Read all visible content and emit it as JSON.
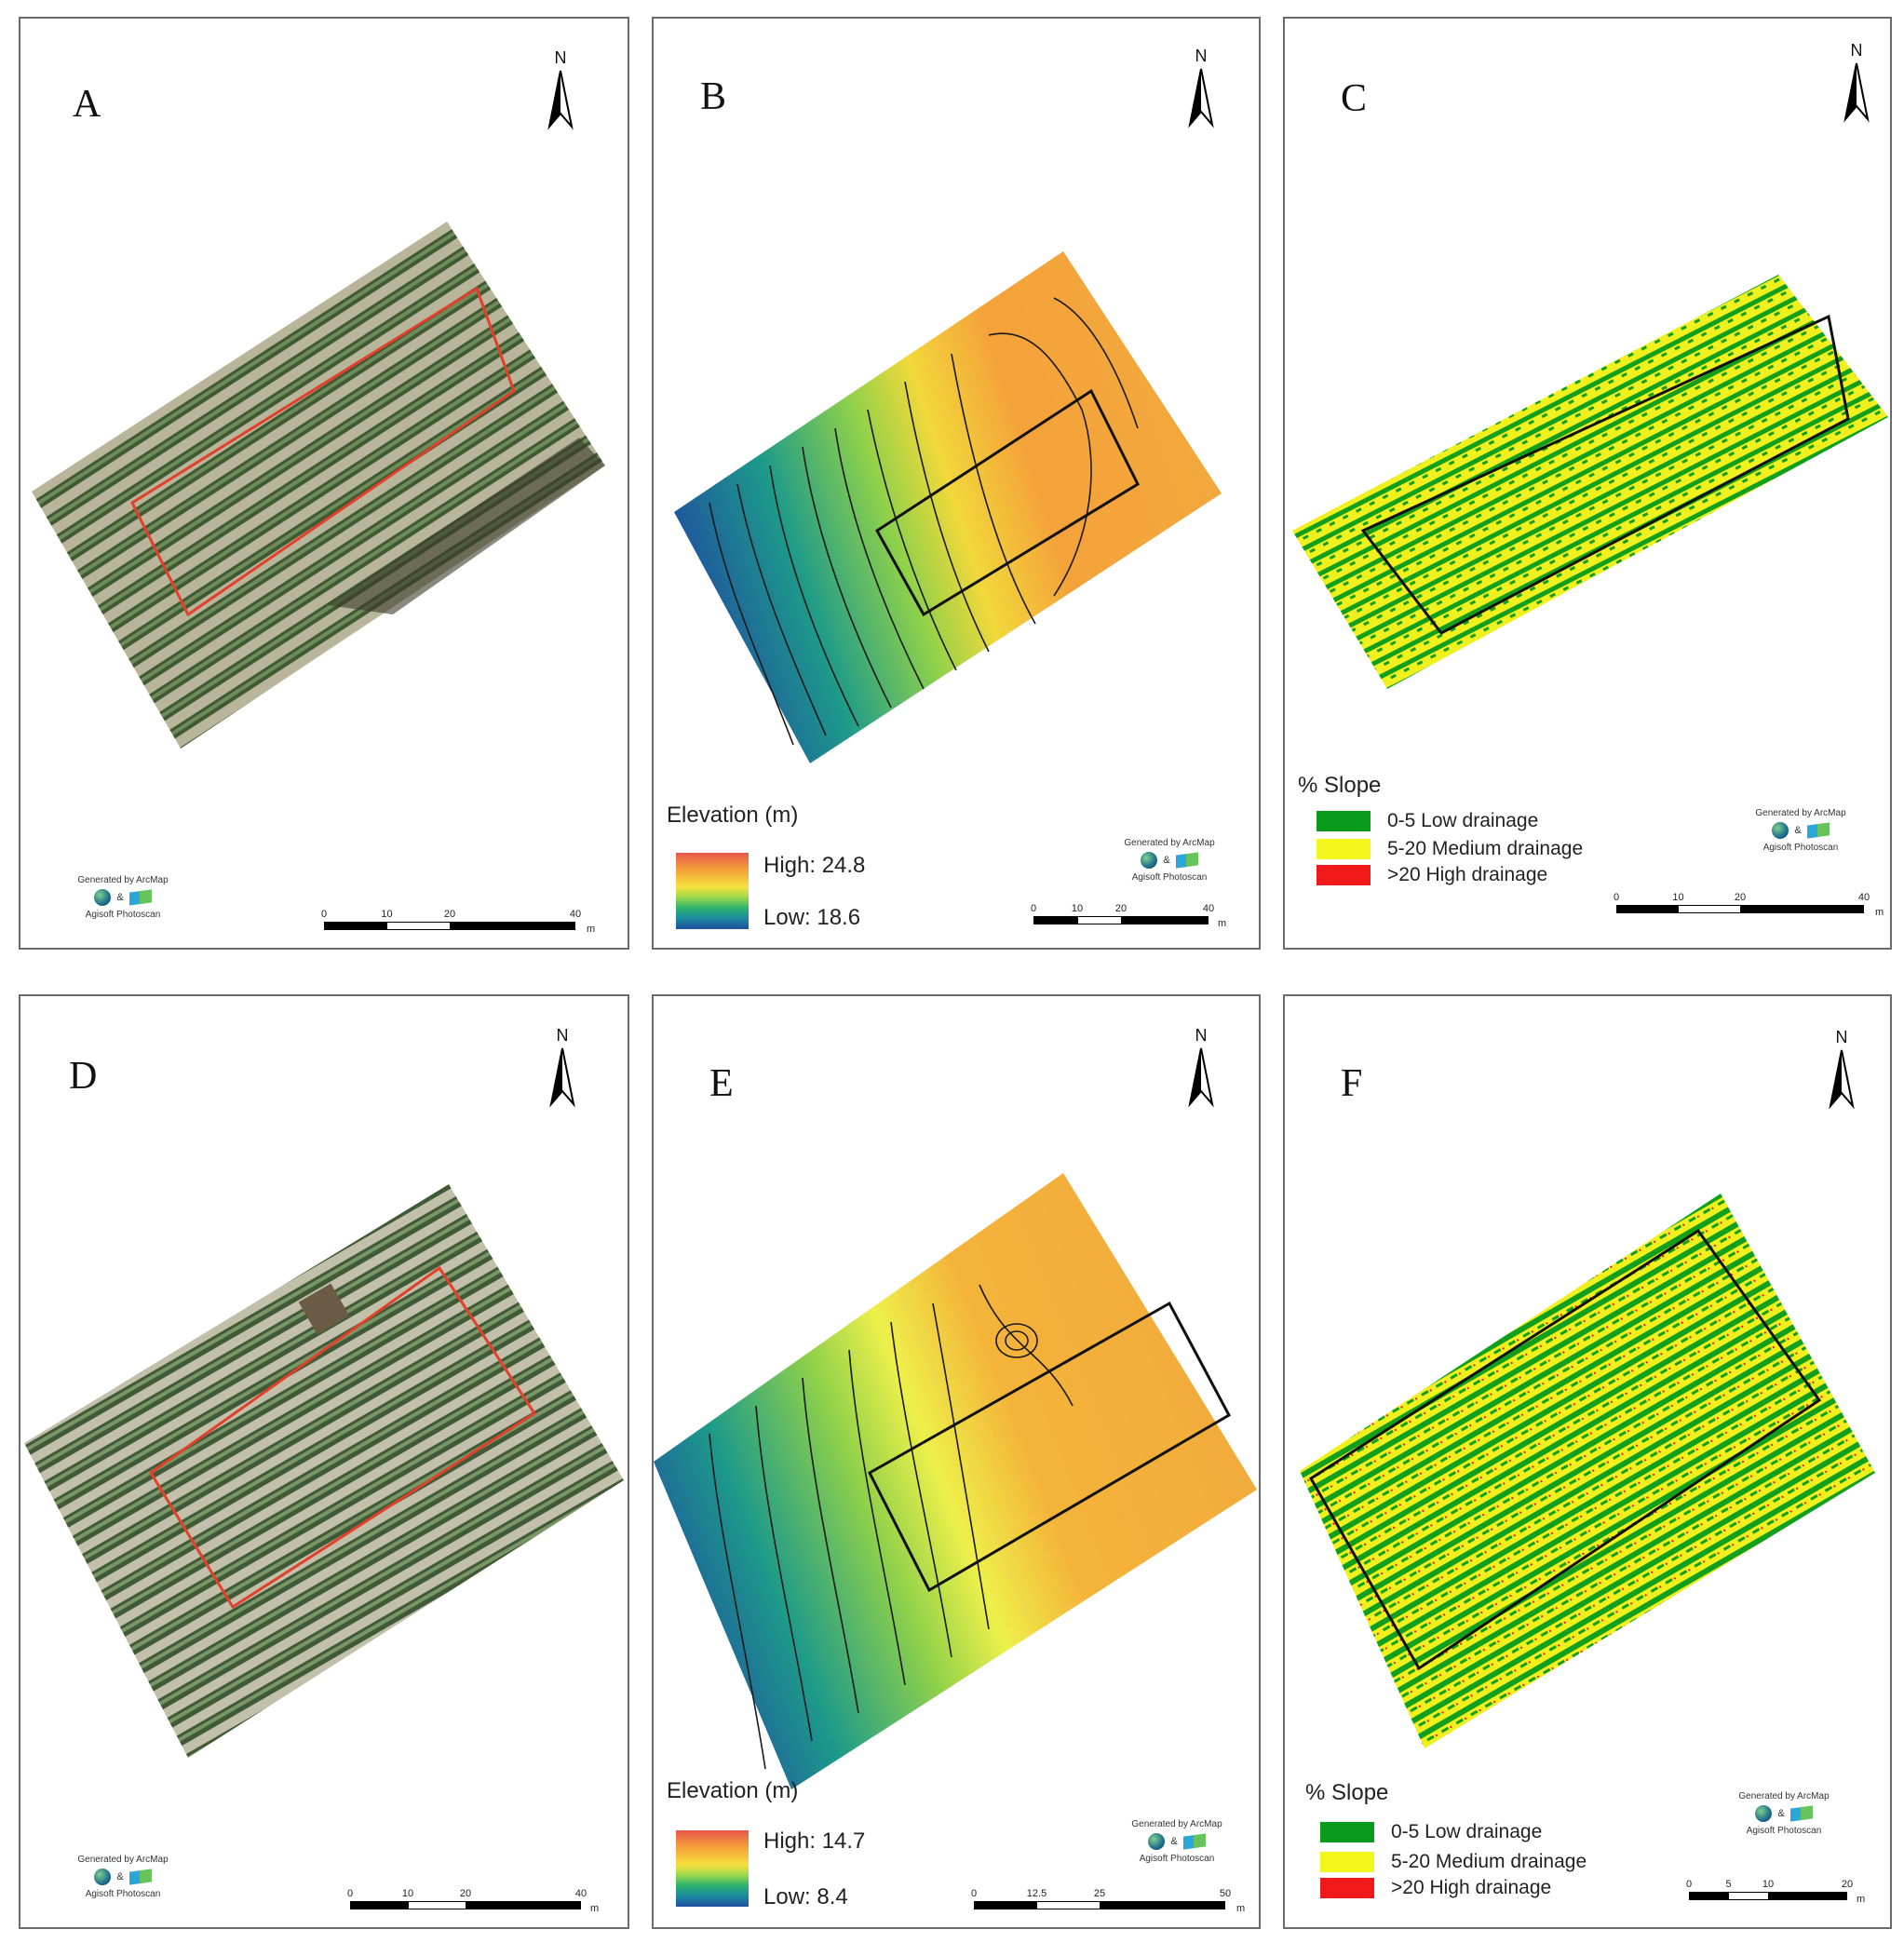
{
  "panels": {
    "A": {
      "letter": "A",
      "north": "N",
      "credit": {
        "top": "Generated by ArcMap",
        "bottom": "Agisoft Photoscan"
      },
      "scale": {
        "ticks": [
          "0",
          "10",
          "20",
          "40"
        ],
        "unit": "m"
      }
    },
    "B": {
      "letter": "B",
      "north": "N",
      "credit": {
        "top": "Generated by ArcMap",
        "bottom": "Agisoft Photoscan"
      },
      "scale": {
        "ticks": [
          "0",
          "10",
          "20",
          "40"
        ],
        "unit": "m"
      },
      "legend": {
        "title": "Elevation (m)",
        "high": "High: 24.8",
        "low": "Low: 18.6"
      }
    },
    "C": {
      "letter": "C",
      "north": "N",
      "credit": {
        "top": "Generated by ArcMap",
        "bottom": "Agisoft Photoscan"
      },
      "scale": {
        "ticks": [
          "0",
          "10",
          "20",
          "40"
        ],
        "unit": "m"
      },
      "legend": {
        "title": "% Slope",
        "items": [
          {
            "label": "0-5 Low drainage",
            "color": "#0a9a1a"
          },
          {
            "label": "5-20 Medium drainage",
            "color": "#f5f51e"
          },
          {
            "label": ">20 High drainage",
            "color": "#f01818"
          }
        ]
      }
    },
    "D": {
      "letter": "D",
      "north": "N",
      "credit": {
        "top": "Generated by ArcMap",
        "bottom": "Agisoft Photoscan"
      },
      "scale": {
        "ticks": [
          "0",
          "10",
          "20",
          "40"
        ],
        "unit": "m"
      }
    },
    "E": {
      "letter": "E",
      "north": "N",
      "credit": {
        "top": "Generated by ArcMap",
        "bottom": "Agisoft Photoscan"
      },
      "scale": {
        "ticks": [
          "0",
          "12.5",
          "25",
          "50"
        ],
        "unit": "m"
      },
      "legend": {
        "title": "Elevation (m)",
        "high": "High: 14.7",
        "low": "Low: 8.4"
      }
    },
    "F": {
      "letter": "F",
      "north": "N",
      "credit": {
        "top": "Generated by ArcMap",
        "bottom": "Agisoft Photoscan"
      },
      "scale": {
        "ticks": [
          "0",
          "5",
          "10",
          "20"
        ],
        "unit": "m"
      },
      "legend": {
        "title": "% Slope",
        "items": [
          {
            "label": "0-5 Low drainage",
            "color": "#0a9a1a"
          },
          {
            "label": "5-20 Medium drainage",
            "color": "#f5f51e"
          },
          {
            "label": ">20 High drainage",
            "color": "#f01818"
          }
        ]
      }
    }
  },
  "colors": {
    "outline_ortho": "#e2402a",
    "outline_dem": "#111111",
    "low_slope": "#0a9a1a",
    "mid_slope": "#f5f51e",
    "high_slope": "#f01818"
  }
}
